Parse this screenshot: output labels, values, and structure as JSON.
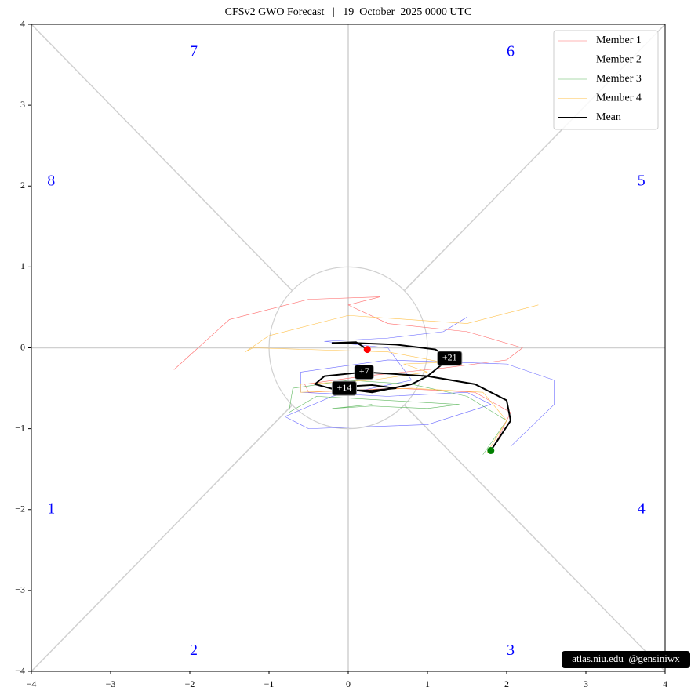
{
  "chart_data": {
    "type": "line",
    "title": "CFSv2 GWO Forecast   |   19  October  2025 0000 UTC",
    "xlim": [
      -4,
      4
    ],
    "ylim": [
      -4,
      4
    ],
    "xticks": [
      {
        "value": -4,
        "label": "−4"
      },
      {
        "value": -3,
        "label": "−3"
      },
      {
        "value": -2,
        "label": "−2"
      },
      {
        "value": -1,
        "label": "−1"
      },
      0,
      1,
      2,
      3,
      4
    ],
    "yticks": [
      {
        "value": -4,
        "label": "−4"
      },
      {
        "value": -3,
        "label": "−3"
      },
      {
        "value": -2,
        "label": "−2"
      },
      {
        "value": -1,
        "label": "−1"
      },
      0,
      1,
      2,
      3,
      4
    ],
    "legend": "upper right",
    "phase_labels": [
      "1",
      "2",
      "3",
      "4",
      "5",
      "6",
      "7",
      "8"
    ],
    "series": [
      {
        "name": "Member 1",
        "color": "#ff6b6b",
        "width": 0.6,
        "x": [
          1.85,
          2.05,
          1.6,
          0.6,
          -0.5,
          -0.55,
          0.2,
          1.2,
          2.0,
          2.2,
          1.5,
          0.5,
          0.0,
          0.4,
          -0.5,
          -1.5,
          -2.2
        ],
        "values": [
          -1.2,
          -0.8,
          -0.55,
          -0.5,
          -0.55,
          -0.45,
          -0.35,
          -0.25,
          -0.15,
          0.0,
          0.2,
          0.3,
          0.53,
          0.63,
          0.6,
          0.35,
          -0.27
        ]
      },
      {
        "name": "Member 2",
        "color": "#6b6bff",
        "width": 0.6,
        "x": [
          2.05,
          2.6,
          2.6,
          2.0,
          0.5,
          -0.6,
          -0.6,
          0.5,
          1.5,
          1.8,
          1.0,
          -0.5,
          -0.8,
          -0.2,
          0.8,
          0.5,
          -0.3,
          0.5,
          1.2,
          1.5
        ],
        "values": [
          -1.22,
          -0.7,
          -0.4,
          -0.2,
          -0.15,
          -0.3,
          -0.55,
          -0.6,
          -0.55,
          -0.7,
          -0.95,
          -1.0,
          -0.85,
          -0.6,
          -0.4,
          0.0,
          0.08,
          0.12,
          0.2,
          0.38
        ]
      },
      {
        "name": "Member 3",
        "color": "#5fb85f",
        "width": 0.6,
        "x": [
          1.7,
          2.0,
          1.5,
          0.8,
          0.0,
          -0.7,
          -0.75,
          -0.4,
          0.5,
          1.4,
          1.0,
          0.3,
          -0.2,
          0.3
        ],
        "values": [
          -1.32,
          -0.9,
          -0.6,
          -0.45,
          -0.4,
          -0.5,
          -0.8,
          -0.6,
          -0.65,
          -0.7,
          -0.75,
          -0.72,
          -0.75,
          -0.7
        ]
      },
      {
        "name": "Member 4",
        "color": "#ffc24d",
        "width": 0.6,
        "x": [
          1.75,
          2.0,
          1.7,
          0.8,
          -0.6,
          -0.6,
          0.3,
          1.0,
          0.7,
          1.2,
          0.5,
          -1.2,
          -1.3,
          -1.0,
          0.0,
          1.5,
          2.4
        ],
        "values": [
          -1.3,
          -0.9,
          -0.55,
          -0.5,
          -0.55,
          -0.45,
          -0.4,
          -0.3,
          -0.2,
          -0.18,
          -0.05,
          0.0,
          -0.05,
          0.15,
          0.4,
          0.3,
          0.53
        ]
      },
      {
        "name": "Mean",
        "color": "#000000",
        "width": 2,
        "x": [
          1.8,
          2.05,
          2.0,
          1.6,
          1.0,
          0.2,
          -0.3,
          -0.42,
          -0.15,
          0.3,
          0.6,
          0.3,
          -0.05,
          -0.1,
          0.3,
          0.8,
          1.0,
          1.28,
          1.1,
          0.6,
          0.1,
          -0.2,
          0.1,
          0.24
        ],
        "values": [
          -1.27,
          -0.9,
          -0.65,
          -0.45,
          -0.35,
          -0.3,
          -0.35,
          -0.45,
          -0.52,
          -0.53,
          -0.5,
          -0.46,
          -0.48,
          -0.5,
          -0.55,
          -0.45,
          -0.35,
          -0.13,
          -0.02,
          0.04,
          0.06,
          0.06,
          0.07,
          -0.02
        ]
      }
    ],
    "markers": [
      {
        "x": 1.8,
        "y": -1.27,
        "color": "#008000"
      },
      {
        "x": 0.24,
        "y": -0.02,
        "color": "#ff0000"
      }
    ],
    "annotations": [
      {
        "text": "+7",
        "x": 0.2,
        "y": -0.3
      },
      {
        "text": "+14",
        "x": -0.05,
        "y": -0.5
      },
      {
        "text": "+21",
        "x": 1.28,
        "y": -0.13
      }
    ],
    "watermark": "atlas.niu.edu  @gensiniwx"
  }
}
